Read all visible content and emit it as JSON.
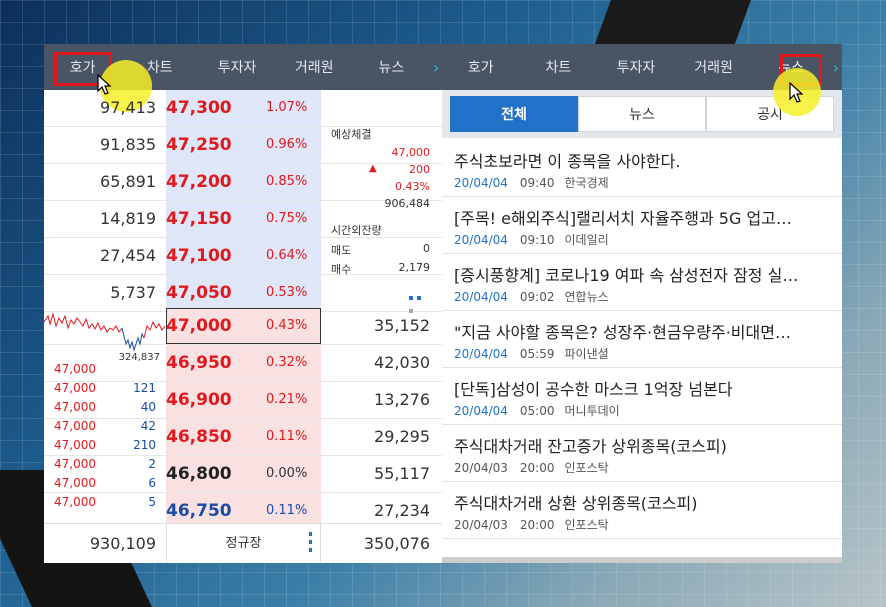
{
  "left": {
    "tabs": [
      "호가",
      "차트",
      "투자자",
      "거래원",
      "뉴스"
    ],
    "asks": [
      {
        "qty": "97,413",
        "price": "47,300",
        "pct": "1.07%"
      },
      {
        "qty": "91,835",
        "price": "47,250",
        "pct": "0.96%"
      },
      {
        "qty": "65,891",
        "price": "47,200",
        "pct": "0.85%"
      },
      {
        "qty": "14,819",
        "price": "47,150",
        "pct": "0.75%"
      },
      {
        "qty": "27,454",
        "price": "47,100",
        "pct": "0.64%"
      },
      {
        "qty": "5,737",
        "price": "47,050",
        "pct": "0.53%"
      }
    ],
    "current": {
      "price": "47,000",
      "pct": "0.43%",
      "qty": "35,152"
    },
    "bids": [
      {
        "price": "46,950",
        "pct": "0.32%",
        "qty": "42,030"
      },
      {
        "price": "46,900",
        "pct": "0.21%",
        "qty": "13,276"
      },
      {
        "price": "46,850",
        "pct": "0.11%",
        "qty": "29,295"
      },
      {
        "price": "46,800",
        "pct": "0.00%",
        "qty": "55,117"
      },
      {
        "price": "46,750",
        "pct": "0.11%",
        "qty": "27,234"
      }
    ],
    "expected": {
      "label": "예상체결",
      "price": "47,000",
      "change": "200",
      "pct": "0.43%",
      "volume": "906,484",
      "after_hours_label": "시간외잔량",
      "sell_label": "매도",
      "sell_value": "0",
      "buy_label": "매수",
      "buy_value": "2,179"
    },
    "mini_chart_volume": "324,837",
    "trades": [
      {
        "price": "47,000",
        "qty": ""
      },
      {
        "price": "47,000",
        "qty": "121"
      },
      {
        "price": "47,000",
        "qty": "40"
      },
      {
        "price": "47,000",
        "qty": "42"
      },
      {
        "price": "47,000",
        "qty": "210"
      },
      {
        "price": "47,000",
        "qty": "2"
      },
      {
        "price": "47,000",
        "qty": "6"
      },
      {
        "price": "47,000",
        "qty": "5"
      }
    ],
    "footer": {
      "total_ask": "930,109",
      "session": "정규장",
      "total_bid": "350,076"
    }
  },
  "right": {
    "tabs": [
      "호가",
      "차트",
      "투자자",
      "거래원",
      "뉴스"
    ],
    "segments": [
      "전체",
      "뉴스",
      "공시"
    ],
    "news": [
      {
        "title": "주식초보라면 이 종목을 사야한다.",
        "date": "20/04/04",
        "time": "09:40",
        "source": "한국경제"
      },
      {
        "title": "[주목! e해외주식]랠리서치 자율주행과 5G 업고…",
        "date": "20/04/04",
        "time": "09:10",
        "source": "이데일리"
      },
      {
        "title": "[증시풍향계] 코로나19 여파 속 삼성전자 잠정 실…",
        "date": "20/04/04",
        "time": "09:02",
        "source": "연합뉴스"
      },
      {
        "title": "\"지금 사야할 종목은? 성장주·현금우량주·비대면…",
        "date": "20/04/04",
        "time": "05:59",
        "source": "파이낸셜"
      },
      {
        "title": "[단독]삼성이 공수한 마스크 1억장 넘본다",
        "date": "20/04/04",
        "time": "05:00",
        "source": "머니투데이"
      },
      {
        "title": "주식대차거래 잔고증가 상위종목(코스피)",
        "date": "20/04/03",
        "time": "20:00",
        "source": "인포스탁"
      },
      {
        "title": "주식대차거래 상환 상위종목(코스피)",
        "date": "20/04/03",
        "time": "20:00",
        "source": "인포스탁"
      }
    ]
  },
  "colors": {
    "accent": "#1f72c7",
    "up": "#e0191e",
    "down": "#1a4ba5",
    "tabbar": "#495465",
    "highlight": "#e0191e",
    "cursor": "#f6f028"
  }
}
